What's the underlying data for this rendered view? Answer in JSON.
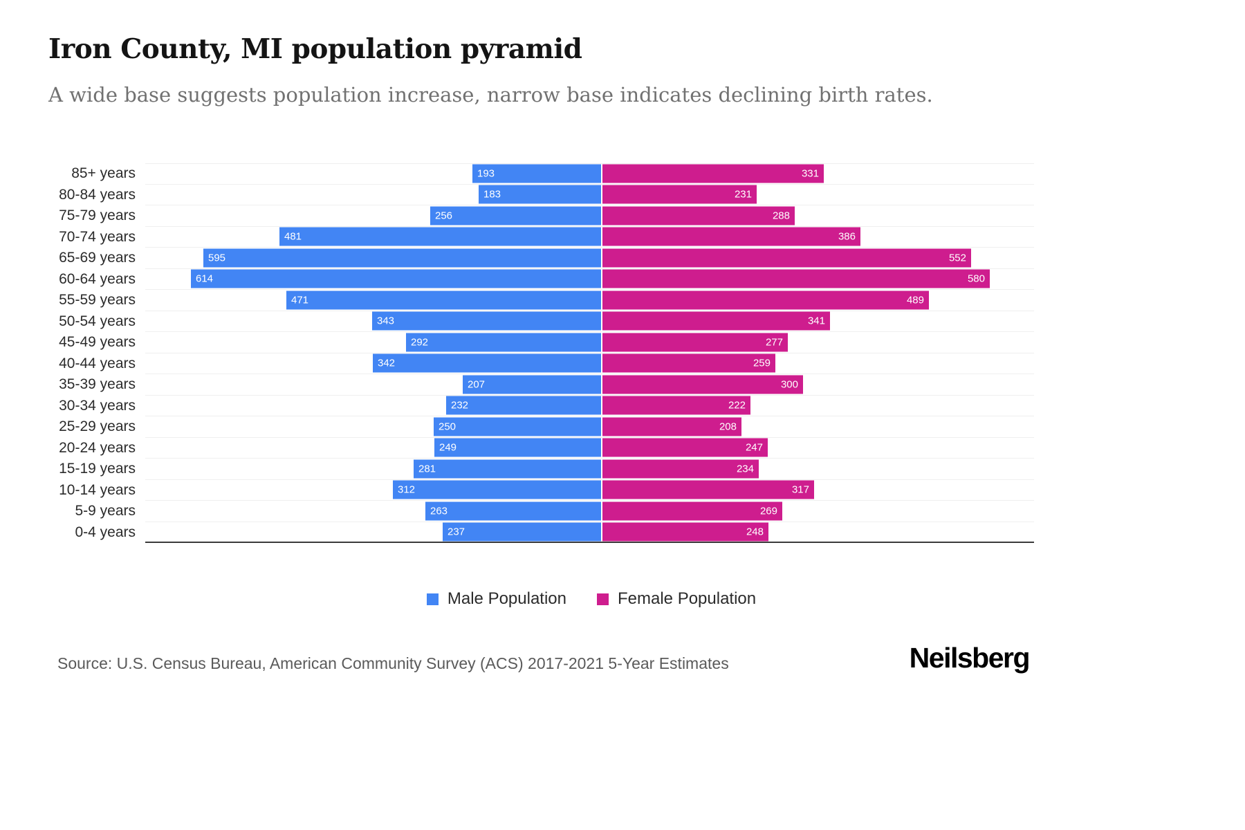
{
  "chart_data": {
    "type": "bar",
    "variant": "population-pyramid",
    "orientation": "horizontal-diverging",
    "title": "Iron County, MI population pyramid",
    "subtitle": "A wide base suggests population increase, narrow base indicates declining birth rates.",
    "categories": [
      "85+ years",
      "80-84 years",
      "75-79 years",
      "70-74 years",
      "65-69 years",
      "60-64 years",
      "55-59 years",
      "50-54 years",
      "45-49 years",
      "40-44 years",
      "35-39 years",
      "30-34 years",
      "25-29 years",
      "20-24 years",
      "15-19 years",
      "10-14 years",
      "5-9 years",
      "0-4 years"
    ],
    "series": [
      {
        "name": "Male Population",
        "color": "#4285F4",
        "values": [
          193,
          183,
          256,
          481,
          595,
          614,
          471,
          343,
          292,
          342,
          207,
          232,
          250,
          249,
          281,
          312,
          263,
          237
        ]
      },
      {
        "name": "Female Population",
        "color": "#CE1D8E",
        "values": [
          331,
          231,
          288,
          386,
          552,
          580,
          489,
          341,
          277,
          259,
          300,
          222,
          208,
          247,
          234,
          317,
          269,
          248
        ]
      }
    ],
    "value_axis": {
      "min": 0,
      "max_each_side": 660
    },
    "legend_position": "bottom",
    "grid": "horizontal-row-lines",
    "value_labels": "inside-bar-outer-end"
  },
  "footer": {
    "source": "Source: U.S. Census Bureau, American Community Survey (ACS) 2017-2021 5-Year Estimates",
    "brand": "Neilsberg"
  }
}
